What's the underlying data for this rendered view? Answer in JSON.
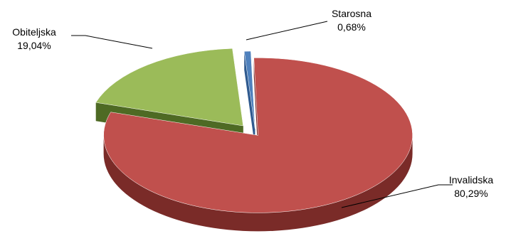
{
  "chart_data": {
    "type": "pie",
    "style": "3d-exploded",
    "title": "",
    "slices": [
      {
        "label": "Starosna",
        "value": 0.68,
        "value_label": "0,68%",
        "color": "#4f81bd",
        "side_color": "#2f5a8f"
      },
      {
        "label": "Invalidska",
        "value": 80.29,
        "value_label": "80,29%",
        "color": "#c0504d",
        "side_color": "#7a2b28"
      },
      {
        "label": "Obiteljska",
        "value": 19.04,
        "value_label": "19,04%",
        "color": "#9bbb59",
        "side_color": "#4e6a24"
      }
    ],
    "legend": "none",
    "labels_position": "outside-with-leader-lines"
  }
}
